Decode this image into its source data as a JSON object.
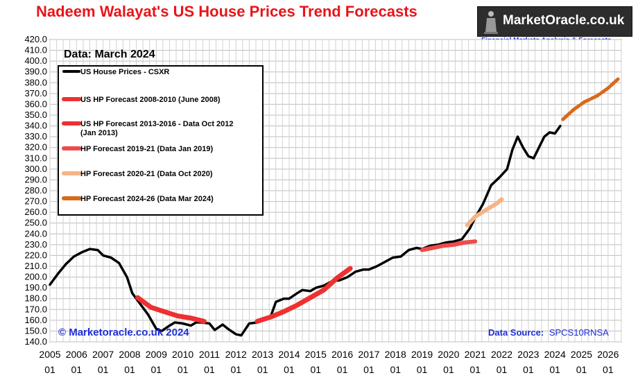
{
  "title": "Nadeem Walayat's US House Prices Trend Forecasts",
  "brand": {
    "name": "MarketOracle.co.uk",
    "tagline": "Financial Markets Analysis & Forecasts",
    "icon": "statue-figure-icon"
  },
  "chart_data": {
    "type": "line",
    "title": "Nadeem Walayat's US House Prices Trend Forecasts",
    "data_note": "Data:  March 2024",
    "copyright": "© Marketoracle.co.uk 2024",
    "source_label": "Data Source:",
    "source_value": "SPCS10RNSA",
    "ylim": [
      140,
      420
    ],
    "y_ticks": [
      "420.0",
      "410.0",
      "400.0",
      "390.0",
      "380.0",
      "370.0",
      "360.0",
      "350.0",
      "340.0",
      "330.0",
      "320.0",
      "310.0",
      "300.0",
      "290.0",
      "280.0",
      "270.0",
      "260.0",
      "250.0",
      "240.0",
      "230.0",
      "220.0",
      "210.0",
      "200.0",
      "190.0",
      "180.0",
      "170.0",
      "160.0",
      "150.0",
      "140.0"
    ],
    "xlim": [
      2005.0,
      2026.5
    ],
    "x_ticks": [
      {
        "year": "2005",
        "month": "01"
      },
      {
        "year": "2006",
        "month": "01"
      },
      {
        "year": "2007",
        "month": "01"
      },
      {
        "year": "2008",
        "month": "01"
      },
      {
        "year": "2009",
        "month": "01"
      },
      {
        "year": "2010",
        "month": "01"
      },
      {
        "year": "2011",
        "month": "01"
      },
      {
        "year": "2012",
        "month": "01"
      },
      {
        "year": "2013",
        "month": "01"
      },
      {
        "year": "2014",
        "month": "01"
      },
      {
        "year": "2015",
        "month": "01"
      },
      {
        "year": "2016",
        "month": "01"
      },
      {
        "year": "2017",
        "month": "01"
      },
      {
        "year": "2018",
        "month": "01"
      },
      {
        "year": "2019",
        "month": "01"
      },
      {
        "year": "2020",
        "month": "01"
      },
      {
        "year": "2021",
        "month": "01"
      },
      {
        "year": "2022",
        "month": "01"
      },
      {
        "year": "2023",
        "month": "01"
      },
      {
        "year": "2024",
        "month": "01"
      },
      {
        "year": "2025",
        "month": "01"
      },
      {
        "year": "2026",
        "month": "01"
      }
    ],
    "grid": true,
    "legend_position": "top-left",
    "series": [
      {
        "name": "US House Prices - CSXR",
        "color": "#000000",
        "x": [
          2005.0,
          2005.3,
          2005.6,
          2005.9,
          2006.2,
          2006.5,
          2006.8,
          2007.0,
          2007.3,
          2007.6,
          2007.9,
          2008.1,
          2008.4,
          2008.7,
          2009.0,
          2009.2,
          2009.5,
          2009.7,
          2010.0,
          2010.3,
          2010.5,
          2010.7,
          2011.0,
          2011.2,
          2011.5,
          2011.7,
          2012.0,
          2012.2,
          2012.5,
          2012.8,
          2013.0,
          2013.3,
          2013.5,
          2013.8,
          2014.0,
          2014.3,
          2014.5,
          2014.8,
          2015.0,
          2015.3,
          2015.6,
          2015.9,
          2016.2,
          2016.5,
          2016.8,
          2017.0,
          2017.3,
          2017.6,
          2017.9,
          2018.2,
          2018.5,
          2018.8,
          2019.0,
          2019.3,
          2019.6,
          2019.9,
          2020.2,
          2020.5,
          2020.8,
          2021.0,
          2021.3,
          2021.6,
          2021.9,
          2022.2,
          2022.4,
          2022.6,
          2022.8,
          2023.0,
          2023.2,
          2023.4,
          2023.6,
          2023.8,
          2024.0,
          2024.2
        ],
        "values": [
          193,
          203,
          212,
          219,
          223,
          226,
          225,
          220,
          218,
          213,
          200,
          185,
          175,
          165,
          152,
          150,
          155,
          158,
          157,
          155,
          158,
          158,
          157,
          151,
          156,
          152,
          147,
          146,
          157,
          158,
          160,
          163,
          177,
          180,
          180,
          185,
          188,
          187,
          190,
          192,
          196,
          197,
          200,
          205,
          207,
          207,
          210,
          214,
          218,
          219,
          225,
          227,
          226,
          229,
          230,
          232,
          233,
          235,
          245,
          255,
          268,
          285,
          292,
          300,
          318,
          330,
          320,
          312,
          310,
          320,
          330,
          334,
          333,
          340
        ]
      },
      {
        "name": "US HP Forecast 2008-2010 (June 2008)",
        "color": "#ee3030",
        "x": [
          2008.3,
          2008.8,
          2009.3,
          2009.8,
          2010.3,
          2010.8
        ],
        "values": [
          181,
          172,
          168,
          164,
          162,
          159
        ]
      },
      {
        "name": "US HP Forecast 2013-2016 - Data Oct 2012 (Jan 2013)",
        "color": "#ee3030",
        "x": [
          2012.8,
          2013.3,
          2013.8,
          2014.3,
          2014.8,
          2015.3,
          2015.8,
          2016.3
        ],
        "values": [
          159,
          163,
          168,
          174,
          181,
          188,
          199,
          208
        ]
      },
      {
        "name": "HP Forecast 2019-21 (Data Jan 2019)",
        "color": "#ef4a4a",
        "x": [
          2019.0,
          2019.4,
          2019.8,
          2020.2,
          2020.6,
          2021.0
        ],
        "values": [
          225,
          227,
          229,
          230,
          232,
          233
        ]
      },
      {
        "name": "HP Forecast 2020-21 (Data Oct 2020)",
        "color": "#f4b486",
        "x": [
          2020.7,
          2021.0,
          2021.4,
          2021.8,
          2022.0
        ],
        "values": [
          248,
          256,
          262,
          268,
          272
        ]
      },
      {
        "name": "HP Forecast 2024-26 (Data Mar 2024)",
        "color": "#d86a1c",
        "x": [
          2024.3,
          2024.7,
          2025.1,
          2025.6,
          2026.0,
          2026.4
        ],
        "values": [
          346,
          355,
          362,
          368,
          375,
          384
        ]
      }
    ]
  }
}
